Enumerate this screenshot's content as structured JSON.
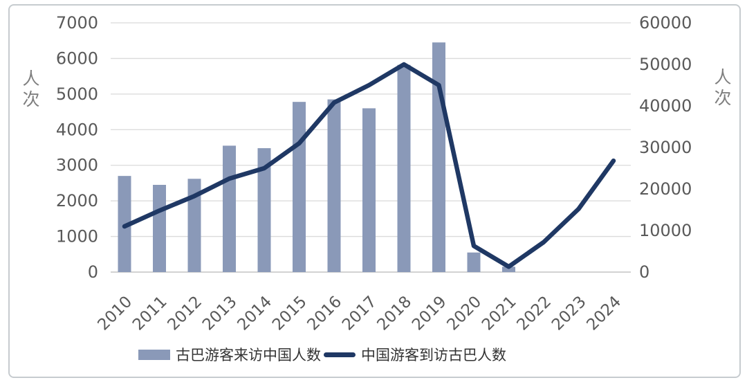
{
  "figure": {
    "left_axis_title": "人次",
    "right_axis_title": "人次"
  },
  "chart_data": {
    "type": "combo-bar-line",
    "title": "",
    "categories": [
      "2010",
      "2011",
      "2012",
      "2013",
      "2014",
      "2015",
      "2016",
      "2017",
      "2018",
      "2019",
      "2020",
      "2021",
      "2022",
      "2023",
      "2024"
    ],
    "series": [
      {
        "name": "古巴游客来访中国人数",
        "type": "bar",
        "axis": "left",
        "color": "#8a99b8",
        "values": [
          2700,
          2450,
          2620,
          3550,
          3480,
          4780,
          4850,
          4600,
          5820,
          6450,
          550,
          150,
          null,
          null,
          null
        ]
      },
      {
        "name": "中国游客到访古巴人数",
        "type": "line",
        "axis": "right",
        "color": "#1f3864",
        "values": [
          11000,
          14800,
          18300,
          22500,
          25000,
          31000,
          40800,
          45000,
          50000,
          45000,
          6300,
          1300,
          7200,
          15200,
          26800
        ]
      }
    ],
    "left_axis": {
      "label": "人次",
      "min": 0,
      "max": 7000,
      "step": 1000,
      "tick_labels": [
        "0",
        "1000",
        "2000",
        "3000",
        "4000",
        "5000",
        "6000",
        "7000"
      ]
    },
    "right_axis": {
      "label": "人次",
      "min": 0,
      "max": 60000,
      "step": 10000,
      "tick_labels": [
        "0",
        "10000",
        "20000",
        "30000",
        "40000",
        "50000",
        "60000"
      ]
    },
    "grid": true,
    "legend_position": "bottom",
    "style": {
      "grid_color": "#dadada",
      "axis_line_color": "#c3c3c3",
      "tick_label_color": "#595959",
      "axis_title_color": "#7f7f7f",
      "legend_text_color": "#333333"
    }
  }
}
